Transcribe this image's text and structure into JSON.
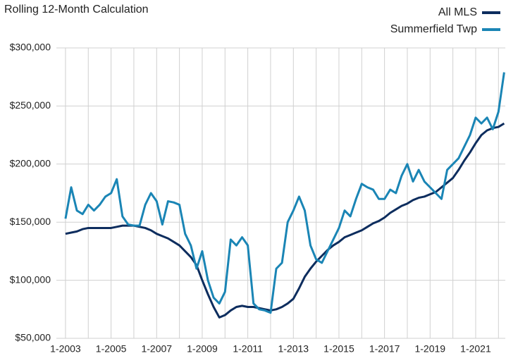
{
  "chart_data": {
    "type": "line",
    "title": "Rolling 12-Month Calculation",
    "x": [
      2003,
      2003.25,
      2003.5,
      2003.75,
      2004,
      2004.25,
      2004.5,
      2004.75,
      2005,
      2005.25,
      2005.5,
      2005.75,
      2006,
      2006.25,
      2006.5,
      2006.75,
      2007,
      2007.25,
      2007.5,
      2007.75,
      2008,
      2008.25,
      2008.5,
      2008.75,
      2009,
      2009.25,
      2009.5,
      2009.75,
      2010,
      2010.25,
      2010.5,
      2010.75,
      2011,
      2011.25,
      2011.5,
      2011.75,
      2012,
      2012.25,
      2012.5,
      2012.75,
      2013,
      2013.25,
      2013.5,
      2013.75,
      2014,
      2014.25,
      2014.5,
      2014.75,
      2015,
      2015.25,
      2015.5,
      2015.75,
      2016,
      2016.25,
      2016.5,
      2016.75,
      2017,
      2017.25,
      2017.5,
      2017.75,
      2018,
      2018.25,
      2018.5,
      2018.75,
      2019,
      2019.25,
      2019.5,
      2019.75,
      2020,
      2020.25,
      2020.5,
      2020.75,
      2021,
      2021.25,
      2021.5,
      2021.75,
      2022,
      2022.25
    ],
    "series": [
      {
        "name": "All MLS",
        "color": "#0d2d5e",
        "values": [
          140000,
          141000,
          142000,
          144000,
          145000,
          145000,
          145000,
          145000,
          145000,
          146000,
          147000,
          147000,
          147000,
          146000,
          145000,
          143000,
          140000,
          138000,
          136000,
          133000,
          130000,
          125000,
          120000,
          113000,
          100000,
          88000,
          77000,
          68000,
          70000,
          74000,
          77000,
          78000,
          77000,
          77000,
          76000,
          75000,
          74000,
          75000,
          77000,
          80000,
          84000,
          93000,
          103000,
          110000,
          116000,
          121000,
          126000,
          130000,
          133000,
          137000,
          139000,
          141000,
          143000,
          146000,
          149000,
          151000,
          154000,
          158000,
          161000,
          164000,
          166000,
          169000,
          171000,
          172000,
          174000,
          176000,
          180000,
          184000,
          188000,
          195000,
          203000,
          210000,
          218000,
          225000,
          229000,
          231000,
          232000,
          235000
        ]
      },
      {
        "name": "Summerfield Twp",
        "color": "#1a85b5",
        "values": [
          153000,
          180000,
          160000,
          157000,
          165000,
          160000,
          165000,
          172000,
          175000,
          187000,
          155000,
          148000,
          147000,
          147000,
          165000,
          175000,
          168000,
          148000,
          168000,
          167000,
          165000,
          140000,
          130000,
          110000,
          125000,
          100000,
          85000,
          80000,
          90000,
          135000,
          130000,
          137000,
          130000,
          80000,
          75000,
          74000,
          72000,
          110000,
          115000,
          150000,
          160000,
          172000,
          160000,
          130000,
          118000,
          115000,
          125000,
          135000,
          145000,
          160000,
          155000,
          170000,
          183000,
          180000,
          178000,
          170000,
          170000,
          178000,
          175000,
          190000,
          200000,
          185000,
          195000,
          185000,
          180000,
          175000,
          170000,
          195000,
          200000,
          205000,
          215000,
          225000,
          240000,
          235000,
          240000,
          230000,
          245000,
          279000
        ]
      }
    ],
    "xlim": [
      2002.6,
      2022.3
    ],
    "xticks": [
      {
        "value": 2003,
        "label": "1-2003"
      },
      {
        "value": 2005,
        "label": "1-2005"
      },
      {
        "value": 2007,
        "label": "1-2007"
      },
      {
        "value": 2009,
        "label": "1-2009"
      },
      {
        "value": 2011,
        "label": "1-2011"
      },
      {
        "value": 2013,
        "label": "1-2013"
      },
      {
        "value": 2015,
        "label": "1-2015"
      },
      {
        "value": 2017,
        "label": "1-2017"
      },
      {
        "value": 2019,
        "label": "1-2019"
      },
      {
        "value": 2021,
        "label": "1-2021"
      }
    ],
    "xminor": [
      2004,
      2006,
      2008,
      2010,
      2012,
      2014,
      2016,
      2018,
      2020,
      2022
    ],
    "ylim": [
      50000,
      300000
    ],
    "yticks": [
      {
        "value": 50000,
        "label": "$50,000"
      },
      {
        "value": 100000,
        "label": "$100,000"
      },
      {
        "value": 150000,
        "label": "$150,000"
      },
      {
        "value": 200000,
        "label": "$200,000"
      },
      {
        "value": 250000,
        "label": "$250,000"
      },
      {
        "value": 300000,
        "label": "$300,000"
      }
    ],
    "grid": true,
    "legend": "top-right"
  }
}
